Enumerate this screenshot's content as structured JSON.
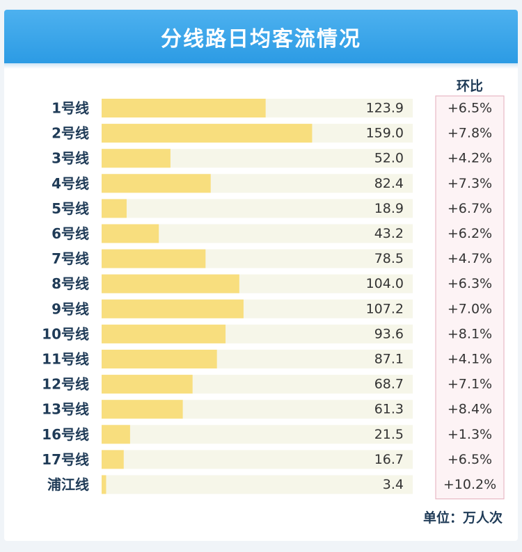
{
  "chart_data": {
    "type": "bar",
    "orientation": "horizontal",
    "title": "分线路日均客流情况",
    "mom_header": "环比",
    "unit": "单位：万人次",
    "categories": [
      "1号线",
      "2号线",
      "3号线",
      "4号线",
      "5号线",
      "6号线",
      "7号线",
      "8号线",
      "9号线",
      "10号线",
      "11号线",
      "12号线",
      "13号线",
      "16号线",
      "17号线",
      "浦江线"
    ],
    "values": [
      123.9,
      159.0,
      52.0,
      82.4,
      18.9,
      43.2,
      78.5,
      104.0,
      107.2,
      93.6,
      87.1,
      68.7,
      61.3,
      21.5,
      16.7,
      3.4
    ],
    "value_labels": [
      "123.9",
      "159.0",
      "52.0",
      "82.4",
      "18.9",
      "43.2",
      "78.5",
      "104.0",
      "107.2",
      "93.6",
      "87.1",
      "68.7",
      "61.3",
      "21.5",
      "16.7",
      "3.4"
    ],
    "mom": [
      "+6.5%",
      "+7.8%",
      "+4.2%",
      "+7.3%",
      "+6.7%",
      "+6.2%",
      "+4.7%",
      "+6.3%",
      "+7.0%",
      "+8.1%",
      "+4.1%",
      "+7.1%",
      "+8.4%",
      "+1.3%",
      "+6.5%",
      "+10.2%"
    ],
    "xlim": [
      0,
      235
    ],
    "colors": {
      "bar": "#f8de7e",
      "track": "#f6f6e9",
      "category_text": "#1f3b57",
      "value_text": "#333333",
      "mom_panel_bg": "#fdf3f5",
      "mom_panel_border": "#e8b8c4",
      "title_bg": "#38a6ea"
    }
  }
}
